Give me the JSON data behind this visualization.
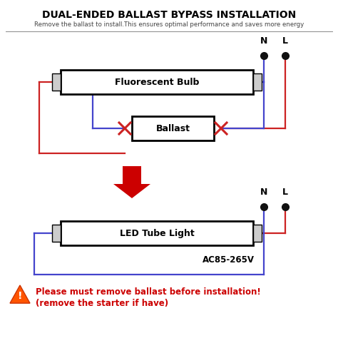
{
  "title": "DUAL-ENDED BALLAST BYPASS INSTALLATION",
  "subtitle": "Remove the ballast to install.This ensures optimal performance and saves more energy",
  "warning_line1": "Please must remove ballast before installation!",
  "warning_line2": "(remove the starter if have)",
  "ac_voltage": "AC85-265V",
  "fluorescent_label": "Fluorescent Bulb",
  "ballast_label": "Ballast",
  "led_label": "LED Tube Light",
  "N_label": "N",
  "L_label": "L",
  "bg_color": "#ffffff",
  "title_color": "#000000",
  "subtitle_color": "#444444",
  "red_wire": "#cc2222",
  "blue_wire": "#4444cc",
  "warning_color": "#cc0000",
  "box_edge": "#000000",
  "arrow_color": "#cc0000",
  "dot_color": "#111111",
  "separator_color": "#888888",
  "pin_color": "#cccccc",
  "tri_fill": "#ff5500",
  "tri_edge": "#cc3300"
}
